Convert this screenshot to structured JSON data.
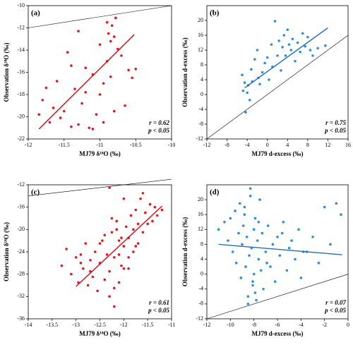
{
  "chart_data": [
    {
      "type": "scatter",
      "panel_label": "(a)",
      "xlabel": "MJ79  δ¹⁸O (‰)",
      "ylabel": "Observation δ¹⁸O (‰)",
      "xlim": [
        -12,
        -10
      ],
      "ylim": [
        -22,
        -10
      ],
      "xticks": [
        -12,
        -11.5,
        -11,
        -10.5,
        -10
      ],
      "yticks": [
        -22,
        -20,
        -18,
        -16,
        -14,
        -12,
        -10
      ],
      "color": "#e8141b",
      "line_color": "#e3000f",
      "x": [
        -11.85,
        -11.8,
        -11.75,
        -11.7,
        -11.65,
        -11.6,
        -11.55,
        -11.5,
        -11.45,
        -11.4,
        -11.35,
        -11.3,
        -11.25,
        -11.2,
        -11.15,
        -11.1,
        -11.05,
        -11.0,
        -10.95,
        -10.9,
        -10.88,
        -10.85,
        -10.83,
        -10.8,
        -10.78,
        -10.75,
        -10.9,
        -10.85,
        -10.8,
        -10.95,
        -11.0,
        -10.7,
        -10.65,
        -10.6,
        -10.55,
        -10.5,
        -11.2,
        -11.3,
        -11.4,
        -11.1
      ],
      "values": [
        -19.8,
        -18.5,
        -17.4,
        -20.5,
        -19.2,
        -16.8,
        -20.1,
        -19.5,
        -14.2,
        -20.9,
        -17.5,
        -12.3,
        -18.8,
        -15.6,
        -21.0,
        -16.2,
        -19.8,
        -13.5,
        -17.0,
        -11.5,
        -12.5,
        -13.2,
        -11.8,
        -12.8,
        -11.1,
        -13.9,
        -15.0,
        -16.4,
        -19.5,
        -20.5,
        -18.0,
        -14.5,
        -19.0,
        -15.8,
        -16.5,
        -15.7,
        -17.8,
        -20.7,
        -15.4,
        -21.1
      ],
      "fit_line": {
        "x": [
          -11.85,
          -10.52
        ],
        "y": [
          -21.1,
          -12.6
        ]
      },
      "reference_line": {
        "x": [
          -12,
          -10
        ],
        "y": [
          -12,
          -10
        ]
      },
      "annotations": [
        "r = 0.62",
        "p < 0.05"
      ]
    },
    {
      "type": "scatter",
      "panel_label": "(b)",
      "xlabel": "MJ79 d-excess (‰)",
      "ylabel": "Observation d-excess (‰)",
      "xlim": [
        -12,
        16
      ],
      "ylim": [
        -12,
        24
      ],
      "xticks": [
        -12,
        -8,
        -4,
        0,
        4,
        8,
        12,
        16
      ],
      "yticks": [
        -12,
        -8,
        -4,
        0,
        4,
        8,
        12,
        16,
        20
      ],
      "color": "#2b8ce6",
      "line_color": "#1f6fbf",
      "x": [
        -5,
        -4.8,
        -4.5,
        -4.3,
        -4,
        -3.8,
        -3.5,
        -3.2,
        -3,
        -2.5,
        -2,
        -1.8,
        -1.5,
        -1,
        -0.5,
        0,
        0.3,
        0.8,
        1,
        1.5,
        2,
        2.3,
        2.7,
        3,
        3.3,
        3.6,
        4,
        4.3,
        4.7,
        5,
        5.5,
        6,
        6.5,
        7,
        7.5,
        8,
        8.5,
        9,
        10,
        11.5
      ],
      "values": [
        5.3,
        1.0,
        3.2,
        -4.8,
        0.5,
        2.5,
        -1.5,
        6.8,
        3.5,
        9.5,
        12.0,
        4.5,
        2.8,
        6.0,
        8.5,
        10.0,
        4.0,
        13.5,
        7.5,
        19.8,
        10.5,
        14.5,
        6.5,
        12.8,
        16.0,
        10.5,
        17.5,
        13.5,
        12.0,
        15.0,
        9.0,
        14.0,
        11.5,
        16.5,
        13.0,
        15.5,
        12.0,
        10.5,
        12.5,
        13.2
      ],
      "fit_line": {
        "x": [
          -4.5,
          12
        ],
        "y": [
          1.8,
          18
        ]
      },
      "reference_line": {
        "x": [
          -12,
          16
        ],
        "y": [
          -12,
          16
        ]
      },
      "annotations": [
        "r = 0.75",
        "p < 0.05"
      ]
    },
    {
      "type": "scatter",
      "panel_label": "(c)",
      "xlabel": "MJ79  δ¹⁸O (‰)",
      "ylabel": "Observation δ¹⁸O (‰)",
      "xlim": [
        -14,
        -11
      ],
      "ylim": [
        -36,
        -12
      ],
      "xticks": [
        -14,
        -13.5,
        -13,
        -12.5,
        -12,
        -11.5,
        -11
      ],
      "yticks": [
        -36,
        -32,
        -28,
        -24,
        -20,
        -16,
        -12
      ],
      "color": "#e8141b",
      "line_color": "#e3000f",
      "x": [
        -13.3,
        -13.2,
        -13.1,
        -13.0,
        -12.95,
        -12.9,
        -12.85,
        -12.8,
        -12.75,
        -12.7,
        -12.65,
        -12.6,
        -12.55,
        -12.5,
        -12.45,
        -12.4,
        -12.35,
        -12.3,
        -12.25,
        -12.2,
        -12.2,
        -12.15,
        -12.1,
        -12.1,
        -12.05,
        -12.0,
        -12.0,
        -11.95,
        -11.9,
        -11.9,
        -11.85,
        -11.8,
        -11.8,
        -11.75,
        -11.7,
        -11.7,
        -11.65,
        -11.6,
        -11.55,
        -11.5,
        -11.45,
        -11.4,
        -11.35,
        -11.3,
        -11.2,
        -12.4,
        -12.3,
        -12.2,
        -12.1,
        -12.0,
        -12.5,
        -12.7,
        -12.9,
        -12.3,
        -12.15,
        -11.9,
        -11.6,
        -12.25,
        -12.05,
        -11.75
      ],
      "values": [
        -26.5,
        -23.5,
        -28.0,
        -25.0,
        -29.5,
        -24.5,
        -27.0,
        -22.5,
        -30.0,
        -25.5,
        -28.5,
        -24.0,
        -31.0,
        -26.0,
        -22.0,
        -29.0,
        -24.5,
        -27.5,
        -20.5,
        -33.8,
        -25.0,
        -18.5,
        -29.5,
        -22.0,
        -26.5,
        -14.5,
        -23.0,
        -19.5,
        -27.0,
        -21.5,
        -17.5,
        -24.0,
        -20.0,
        -16.5,
        -22.5,
        -19.0,
        -14.5,
        -20.5,
        -17.0,
        -19.0,
        -15.5,
        -18.5,
        -16.0,
        -17.5,
        -16.5,
        -21.0,
        -12.5,
        -30.5,
        -24.5,
        -27.0,
        -22.5,
        -27.5,
        -26.0,
        -32.0,
        -20.0,
        -25.0,
        -13.5,
        -18.0,
        -21.5,
        -23.0
      ],
      "fit_line": {
        "x": [
          -13,
          -11.2
        ],
        "y": [
          -30.2,
          -15.8
        ]
      },
      "reference_line": {
        "x": [
          -14,
          -11
        ],
        "y": [
          -14,
          -11
        ]
      },
      "annotations": [
        "r = 0.61",
        "p < 0.05"
      ]
    },
    {
      "type": "scatter",
      "panel_label": "(d)",
      "xlabel": "MJ79 d-excess (‰)",
      "ylabel": "Observation d-excess (‰)",
      "xlim": [
        -12,
        0
      ],
      "ylim": [
        -12,
        24
      ],
      "xticks": [
        -12,
        -10,
        -8,
        -6,
        -4,
        -2,
        0
      ],
      "yticks": [
        -12,
        -8,
        -4,
        0,
        4,
        8,
        12,
        16,
        20
      ],
      "color": "#2b8ce6",
      "line_color": "#1f6fbf",
      "x": [
        -11,
        -10.5,
        -10.2,
        -10,
        -9.8,
        -9.6,
        -9.5,
        -9.3,
        -9.1,
        -9,
        -8.9,
        -8.8,
        -8.7,
        -8.6,
        -8.5,
        -8.4,
        -8.3,
        -8.2,
        -8.1,
        -8,
        -8,
        -7.9,
        -7.8,
        -7.7,
        -7.6,
        -7.5,
        -7.4,
        -7.3,
        -7.2,
        -7,
        -6.8,
        -6.6,
        -6.4,
        -6.2,
        -6,
        -5.8,
        -5.5,
        -5.2,
        -5,
        -4.8,
        -4.5,
        -4.2,
        -4,
        -3.5,
        -3,
        -2.5,
        -2,
        -1.5,
        -1,
        -0.6,
        -8.5,
        -8.3,
        -8.8,
        -7.9,
        -9.2,
        -7.6,
        -8.1,
        -6.9,
        -5.6,
        -3.8
      ],
      "values": [
        12,
        14,
        9,
        15,
        6,
        17,
        3,
        11,
        -1,
        8,
        13,
        18,
        2,
        10,
        -6,
        5,
        23,
        7,
        -3,
        12,
        0,
        15,
        -7,
        9,
        4,
        20,
        1,
        11,
        -4,
        6,
        13,
        2,
        8,
        -2,
        10,
        5,
        14,
        1,
        7,
        9,
        4,
        12,
        -1,
        6,
        10,
        3,
        18,
        8,
        19,
        16,
        -8,
        21,
        16,
        -5,
        19,
        14,
        -2,
        3,
        11,
        6
      ],
      "fit_line": {
        "x": [
          -11,
          -0.5
        ],
        "y": [
          8,
          5.2
        ]
      },
      "reference_line": {
        "x": [
          -12,
          0
        ],
        "y": [
          -12,
          0
        ]
      },
      "annotations": [
        "r = 0.07",
        "p < 0.05"
      ]
    }
  ]
}
